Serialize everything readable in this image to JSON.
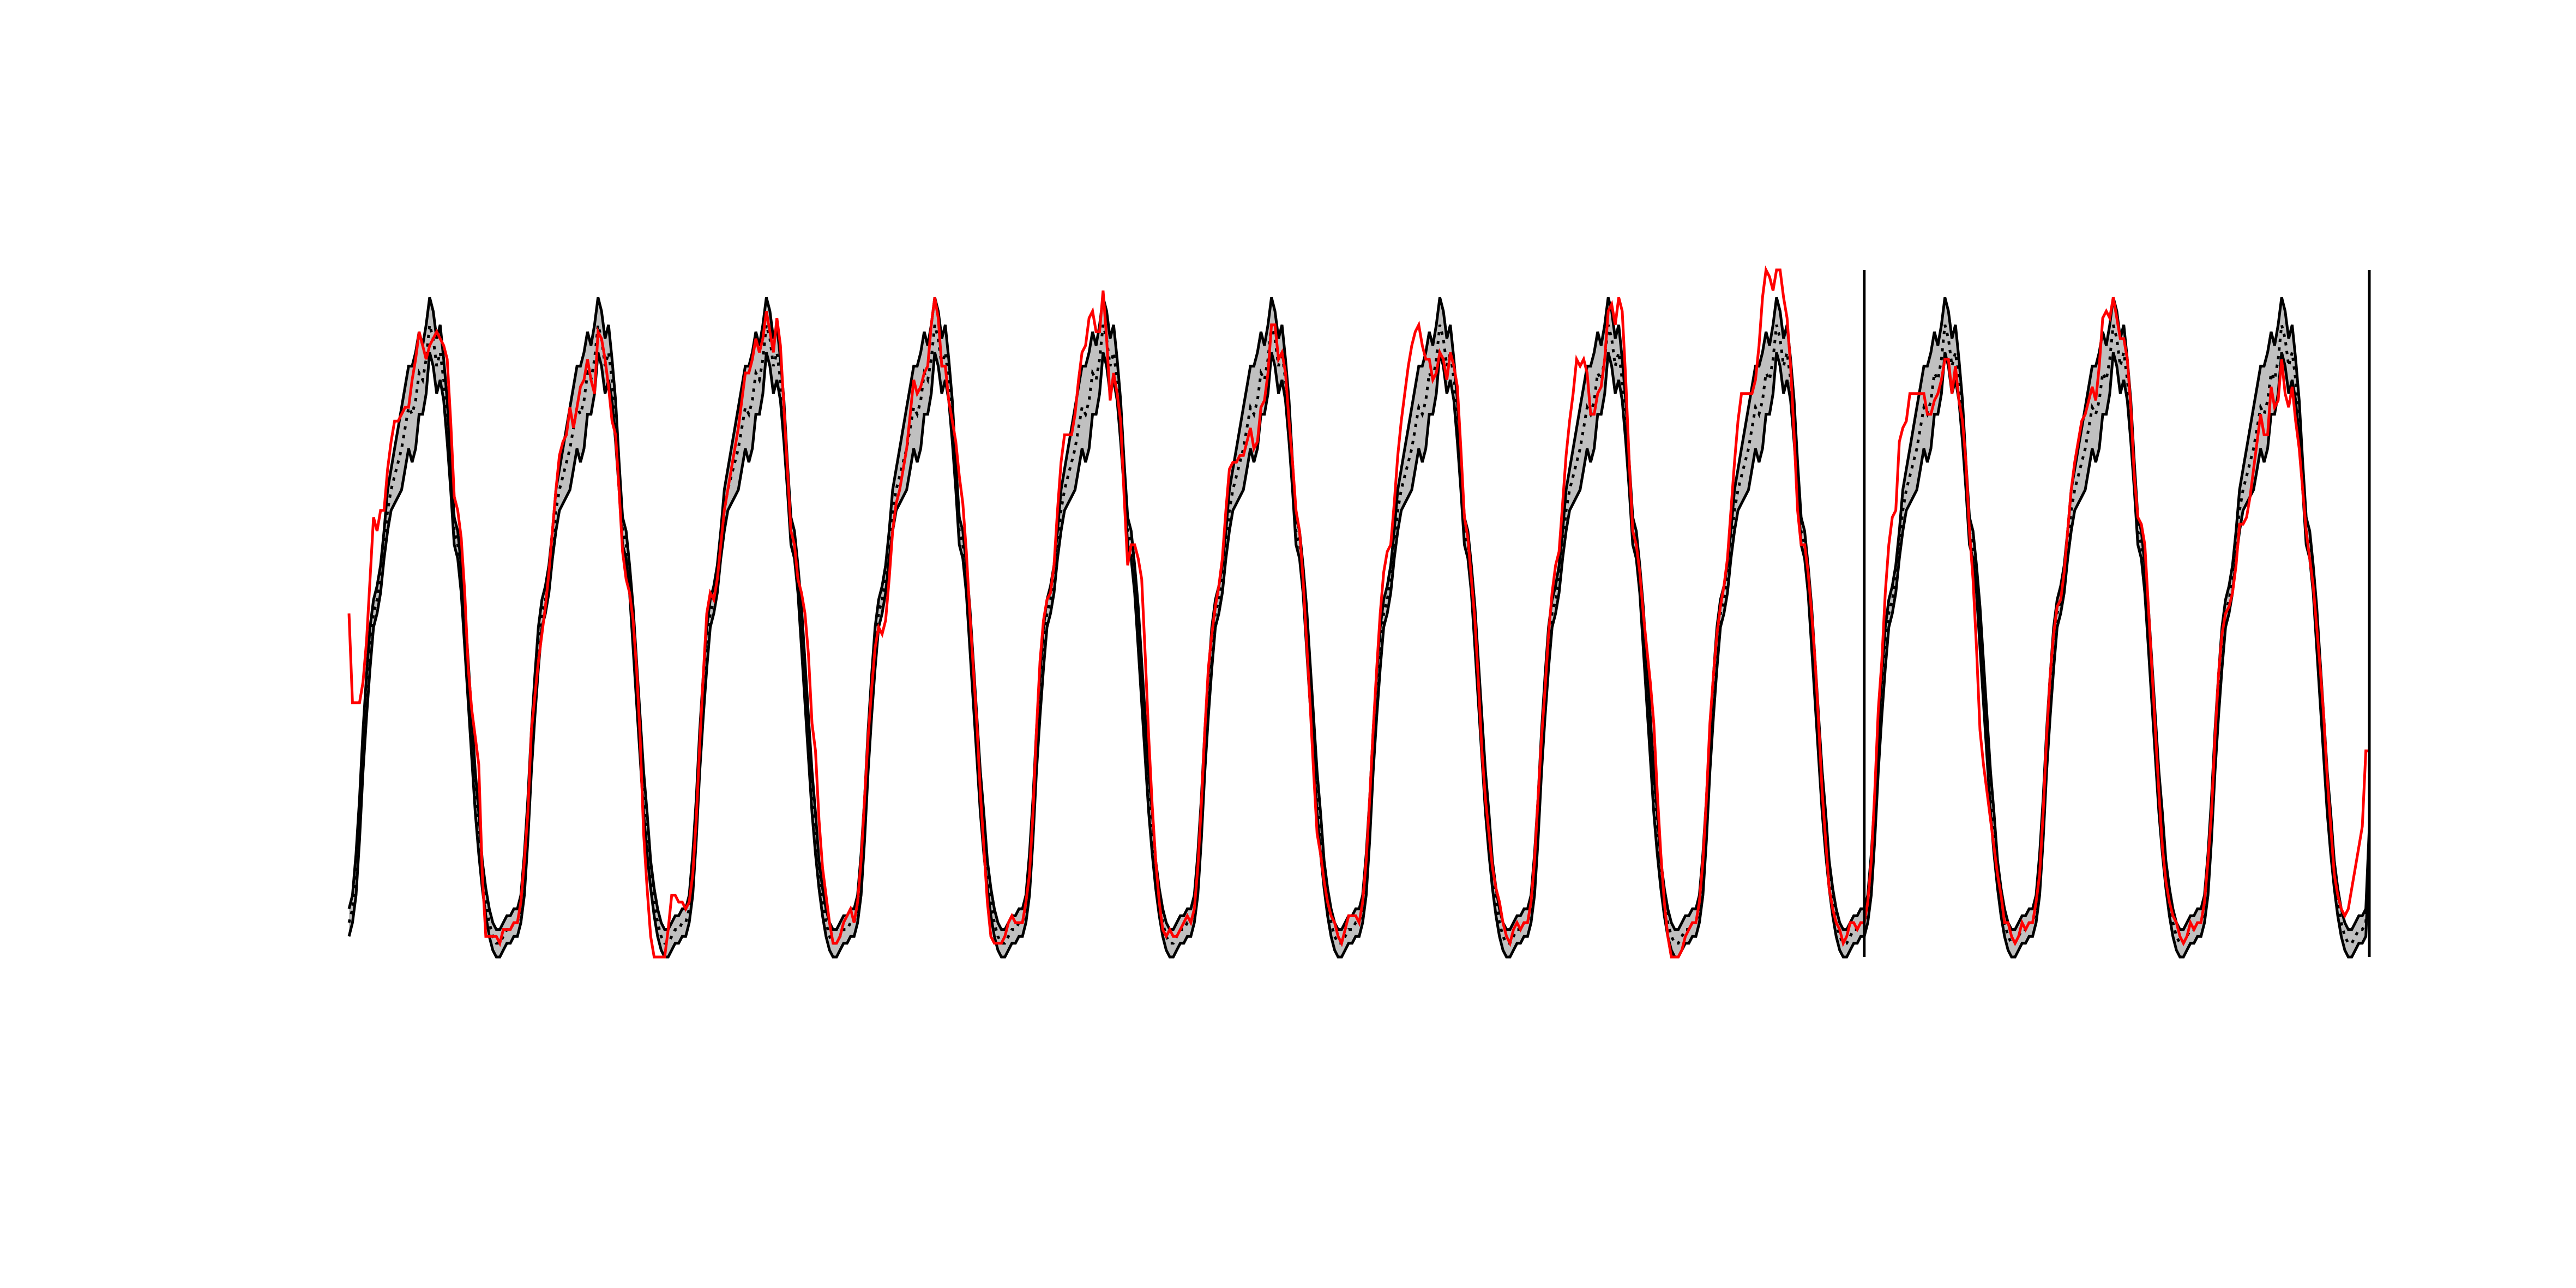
{
  "chart_data": {
    "type": "line",
    "title": "",
    "xlabel": "",
    "ylabel": "",
    "grid": false,
    "legend": "none",
    "xlim": [
      0,
      12
    ],
    "ylim": [
      0,
      1
    ],
    "n_periods": 12,
    "samples_per_period": 48,
    "vertical_lines_x": [
      9,
      12
    ],
    "colors": {
      "band_fill": "#c0c0c0",
      "band_edge": "#000000",
      "mean_line": "#000000",
      "observed": "#ff0000",
      "vline": "#000000"
    },
    "profile": [
      0.05,
      0.07,
      0.12,
      0.2,
      0.3,
      0.38,
      0.45,
      0.5,
      0.52,
      0.55,
      0.6,
      0.65,
      0.68,
      0.7,
      0.72,
      0.74,
      0.77,
      0.8,
      0.79,
      0.81,
      0.85,
      0.84,
      0.87,
      0.92,
      0.9,
      0.86,
      0.88,
      0.84,
      0.78,
      0.7,
      0.62,
      0.6,
      0.55,
      0.48,
      0.4,
      0.32,
      0.24,
      0.18,
      0.12,
      0.08,
      0.05,
      0.03,
      0.02,
      0.02,
      0.03,
      0.04,
      0.04,
      0.05
    ],
    "band_halfwidth": [
      0.02,
      0.02,
      0.03,
      0.03,
      0.03,
      0.03,
      0.03,
      0.02,
      0.02,
      0.02,
      0.02,
      0.03,
      0.03,
      0.04,
      0.05,
      0.06,
      0.06,
      0.06,
      0.07,
      0.07,
      0.06,
      0.05,
      0.05,
      0.04,
      0.04,
      0.04,
      0.04,
      0.03,
      0.03,
      0.02,
      0.02,
      0.02,
      0.02,
      0.03,
      0.03,
      0.03,
      0.03,
      0.03,
      0.02,
      0.02,
      0.02,
      0.02,
      0.02,
      0.02,
      0.02,
      0.02,
      0.02,
      0.02
    ],
    "observed_offsets": [
      [
        0.45,
        0.3,
        0.25,
        0.17,
        0.1,
        0.08,
        0.1,
        0.14,
        0.1,
        0.1,
        0.05,
        0.06,
        0.07,
        0.08,
        0.06,
        0.05,
        0.03,
        0.0,
        0.05,
        0.06,
        0.06,
        0.05,
        0.0,
        -0.03,
        0.0,
        0.05,
        0.02,
        0.05,
        0.09,
        0.08,
        0.05,
        0.05,
        0.06,
        0.05,
        0.02,
        0.04,
        0.08,
        0.1,
        0.0,
        -0.05,
        -0.02,
        0.0,
        0.01,
        0.0,
        0.01,
        0.0,
        0.0,
        0.0
      ],
      [
        0.0,
        0.01,
        0.02,
        0.01,
        0.03,
        0.0,
        -0.02,
        -0.03,
        -0.01,
        0.01,
        0.02,
        0.03,
        0.05,
        0.05,
        0.04,
        0.06,
        0.0,
        0.0,
        0.04,
        0.03,
        0.02,
        0.0,
        -0.05,
        -0.01,
        0.0,
        0.01,
        -0.05,
        -0.06,
        -0.02,
        -0.02,
        -0.03,
        -0.05,
        -0.02,
        0.01,
        0.02,
        0.0,
        -0.06,
        -0.08,
        -0.09,
        -0.12,
        -0.1,
        -0.08,
        -0.06,
        0.02,
        0.06,
        0.05,
        0.04,
        0.03
      ],
      [
        0.02,
        0.01,
        0.0,
        0.0,
        0.01,
        0.03,
        0.05,
        0.03,
        0.0,
        0.0,
        0.0,
        0.0,
        0.0,
        0.01,
        0.02,
        0.03,
        0.04,
        0.05,
        0.06,
        0.06,
        0.05,
        0.04,
        0.03,
        0.02,
        0.01,
        0.02,
        0.05,
        0.05,
        0.02,
        0.01,
        0.0,
        0.0,
        0.0,
        0.05,
        0.1,
        0.12,
        0.1,
        0.12,
        0.08,
        0.05,
        0.04,
        0.02,
        0.0,
        0.0,
        0.0,
        0.01,
        0.02,
        0.02
      ],
      [
        0.0,
        0.01,
        0.02,
        0.03,
        0.02,
        0.01,
        0.0,
        -0.02,
        -0.05,
        -0.06,
        -0.05,
        -0.03,
        -0.02,
        -0.02,
        -0.01,
        0.0,
        0.02,
        0.04,
        0.03,
        0.02,
        0.0,
        0.02,
        0.05,
        0.04,
        0.03,
        0.0,
        -0.02,
        -0.03,
        0.0,
        0.05,
        0.08,
        0.06,
        0.04,
        0.02,
        0.02,
        0.02,
        0.0,
        -0.02,
        -0.04,
        -0.05,
        -0.03,
        -0.01,
        0.0,
        0.01,
        0.02,
        0.02,
        0.01,
        0.0
      ],
      [
        0.0,
        0.01,
        0.0,
        0.01,
        0.03,
        0.05,
        0.04,
        0.02,
        0.01,
        0.02,
        0.05,
        0.07,
        0.08,
        0.06,
        0.04,
        0.05,
        0.07,
        0.08,
        0.1,
        0.12,
        0.09,
        0.07,
        0.04,
        0.05,
        0.0,
        -0.05,
        -0.03,
        -0.02,
        0.0,
        -0.03,
        -0.05,
        0.0,
        0.05,
        0.1,
        0.15,
        0.12,
        0.08,
        0.04,
        0.02,
        0.0,
        -0.01,
        0.0,
        0.02,
        0.01,
        0.0,
        0.0,
        0.01,
        0.01
      ],
      [
        0.0,
        0.0,
        0.01,
        0.02,
        0.03,
        0.04,
        0.02,
        0.01,
        0.02,
        0.03,
        0.05,
        0.06,
        0.04,
        0.02,
        0.01,
        -0.01,
        -0.02,
        -0.03,
        -0.05,
        -0.06,
        -0.05,
        -0.03,
        -0.02,
        0.0,
        0.02,
        0.01,
        0.0,
        0.01,
        0.0,
        0.02,
        0.03,
        0.02,
        0.0,
        -0.02,
        -0.03,
        -0.05,
        -0.06,
        -0.03,
        -0.01,
        0.0,
        0.01,
        0.02,
        0.01,
        0.0,
        0.01,
        0.02,
        0.02,
        0.01
      ],
      [
        0.0,
        0.01,
        0.02,
        0.03,
        0.03,
        0.04,
        0.05,
        0.06,
        0.07,
        0.05,
        0.06,
        0.08,
        0.1,
        0.12,
        0.14,
        0.15,
        0.14,
        0.12,
        0.1,
        0.06,
        0.02,
        0.0,
        -0.02,
        -0.04,
        -0.03,
        -0.02,
        0.0,
        0.02,
        0.05,
        0.04,
        0.02,
        0.01,
        0.0,
        0.01,
        0.0,
        -0.02,
        -0.01,
        0.0,
        0.01,
        0.02,
        0.03,
        0.02,
        0.01,
        0.0,
        0.01,
        0.01,
        0.0,
        0.0
      ],
      [
        0.0,
        0.01,
        0.02,
        0.03,
        0.02,
        0.01,
        0.02,
        0.03,
        0.05,
        0.04,
        0.06,
        0.08,
        0.1,
        0.12,
        0.15,
        0.12,
        0.1,
        0.05,
        0.0,
        -0.02,
        -0.03,
        -0.01,
        0.0,
        0.02,
        0.05,
        0.06,
        0.08,
        0.1,
        0.06,
        0.02,
        0.0,
        0.0,
        0.01,
        0.02,
        0.05,
        0.08,
        0.1,
        0.06,
        0.03,
        0.0,
        -0.02,
        -0.05,
        -0.06,
        -0.04,
        -0.02,
        -0.01,
        0.0,
        0.0
      ],
      [
        0.0,
        0.01,
        0.02,
        0.03,
        0.04,
        0.03,
        0.02,
        0.01,
        0.02,
        0.03,
        0.05,
        0.07,
        0.1,
        0.12,
        0.1,
        0.08,
        0.05,
        0.04,
        0.1,
        0.15,
        0.2,
        0.15,
        0.1,
        0.12,
        0.15,
        0.1,
        0.05,
        0.02,
        -0.02,
        -0.05,
        -0.02,
        0.0,
        0.01,
        0.02,
        0.03,
        0.02,
        0.0,
        -0.01,
        -0.02,
        -0.01,
        0.0,
        0.01,
        0.0,
        0.01,
        0.02,
        0.01,
        0.0,
        0.0
      ],
      [
        0.0,
        0.01,
        0.02,
        0.04,
        0.06,
        0.05,
        0.08,
        0.1,
        0.12,
        0.1,
        0.15,
        0.12,
        0.1,
        0.12,
        0.1,
        0.08,
        0.05,
        0.02,
        0.0,
        -0.02,
        -0.04,
        -0.02,
        -0.03,
        -0.05,
        -0.03,
        -0.04,
        -0.02,
        -0.03,
        0.0,
        0.02,
        0.0,
        -0.05,
        -0.1,
        -0.15,
        -0.12,
        -0.08,
        -0.04,
        -0.02,
        0.0,
        0.01,
        0.0,
        0.02,
        0.01,
        0.0,
        0.0,
        0.01,
        0.0,
        0.0
      ],
      [
        0.0,
        0.01,
        0.0,
        0.01,
        0.02,
        0.03,
        0.02,
        0.01,
        0.0,
        0.01,
        0.02,
        0.03,
        0.04,
        0.05,
        0.06,
        0.05,
        0.04,
        0.03,
        0.02,
        0.05,
        0.08,
        0.1,
        0.06,
        0.04,
        0.03,
        0.04,
        0.02,
        0.03,
        0.02,
        0.0,
        0.02,
        0.03,
        0.05,
        0.03,
        0.02,
        0.01,
        0.0,
        -0.02,
        -0.01,
        0.0,
        0.01,
        0.02,
        0.01,
        0.0,
        0.0,
        0.01,
        0.0,
        0.0
      ],
      [
        0.0,
        0.01,
        0.02,
        0.01,
        0.02,
        0.03,
        0.02,
        0.0,
        -0.01,
        -0.02,
        -0.03,
        -0.02,
        -0.05,
        -0.06,
        -0.05,
        -0.03,
        -0.02,
        -0.01,
        -0.03,
        -0.05,
        -0.02,
        -0.04,
        -0.06,
        -0.05,
        -0.08,
        -0.06,
        -0.05,
        -0.06,
        -0.04,
        -0.02,
        0.0,
        -0.02,
        -0.01,
        0.0,
        0.02,
        0.03,
        0.02,
        0.01,
        0.0,
        0.01,
        0.02,
        0.03,
        0.05,
        0.08,
        0.1,
        0.12,
        0.15,
        0.25
      ]
    ]
  }
}
